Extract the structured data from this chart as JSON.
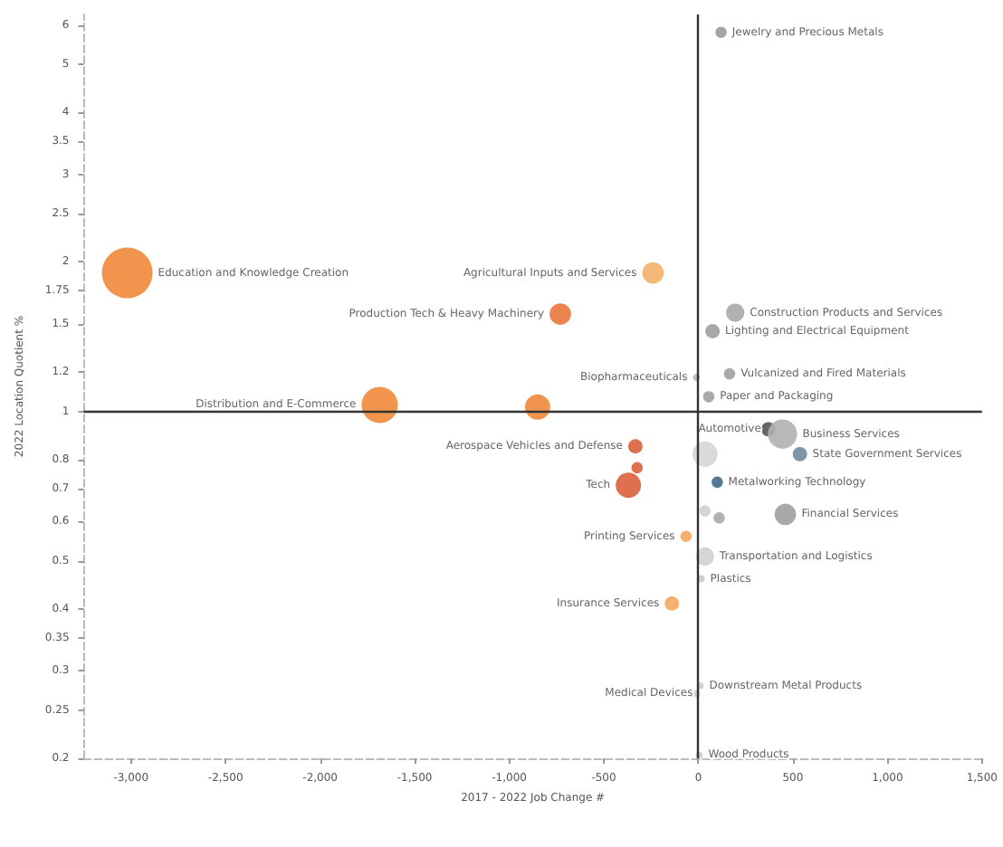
{
  "chart_data": {
    "type": "bubble",
    "xlabel": "2017 - 2022 Job Change #",
    "ylabel": "2022 Location Quotient %",
    "log": "y",
    "legend": false,
    "grid": false,
    "marker": "circle",
    "xlim": [
      -3250,
      1500
    ],
    "xticks": [
      {
        "value": -3000,
        "label": "-3,000"
      },
      {
        "value": -2500,
        "label": "-2,500"
      },
      {
        "value": -2000,
        "label": "-2,000"
      },
      {
        "value": -1500,
        "label": "-1,500"
      },
      {
        "value": -1000,
        "label": "-1,000"
      },
      {
        "value": -500,
        "label": "-500"
      },
      0,
      500,
      {
        "value": 1000,
        "label": "1,000"
      },
      {
        "value": 1500,
        "label": "1,500"
      }
    ],
    "ylim": [
      0.2,
      6.3
    ],
    "yticks": [
      0.2,
      0.25,
      0.3,
      0.35,
      0.4,
      0.5,
      0.6,
      0.7,
      0.8,
      1,
      1.2,
      1.5,
      1.75,
      2,
      2.5,
      3,
      3.5,
      4,
      5,
      6
    ],
    "ref_lines": [
      {
        "axis": "x",
        "value": 0,
        "color": "#333333"
      },
      {
        "axis": "y",
        "value": 1,
        "color": "#333333"
      }
    ],
    "series": [
      {
        "name": "Education and Knowledge Creation",
        "color": "#f0883a",
        "x": [
          -3020
        ],
        "values": [
          1.9
        ],
        "sizes": [
          1
        ]
      },
      {
        "name": "Agricultural Inputs and Services",
        "color": "#f5b06a",
        "x": [
          -240
        ],
        "values": [
          1.9
        ],
        "sizes": [
          0.18
        ]
      },
      {
        "name": "Production Tech & Heavy Machinery",
        "color": "#e8763a",
        "x": [
          -730
        ],
        "values": [
          1.57
        ],
        "sizes": [
          0.18
        ]
      },
      {
        "name": "Distribution and E-Commerce",
        "color": "#f0883a",
        "x": [
          -1685
        ],
        "values": [
          1.03
        ],
        "sizes": [
          0.51
        ]
      },
      {
        "color": "#ee8a3c",
        "x": [
          -850
        ],
        "values": [
          1.02
        ],
        "sizes": [
          0.25
        ]
      },
      {
        "name": "Jewelry and Precious Metals",
        "color": "#9a9a9a",
        "x": [
          120
        ],
        "values": [
          5.8
        ],
        "sizes": [
          0.05
        ]
      },
      {
        "name": "Construction Products and Services",
        "color": "#a8a8a8",
        "x": [
          195
        ],
        "values": [
          1.58
        ],
        "sizes": [
          0.13
        ]
      },
      {
        "name": "Lighting and Electrical Equipment",
        "color": "#a0a0a0",
        "x": [
          75
        ],
        "values": [
          1.45
        ],
        "sizes": [
          0.08
        ]
      },
      {
        "name": "Vulcanized and Fired Materials",
        "color": "#a0a0a0",
        "x": [
          165
        ],
        "values": [
          1.19
        ],
        "sizes": [
          0.05
        ]
      },
      {
        "name": "Biopharmaceuticals",
        "color": "#b8b8b8",
        "x": [
          -10
        ],
        "values": [
          1.17
        ],
        "sizes": [
          0.02
        ]
      },
      {
        "name": "Paper and Packaging",
        "color": "#a0a0a0",
        "x": [
          55
        ],
        "values": [
          1.07
        ],
        "sizes": [
          0.05
        ]
      },
      {
        "name": "Aerospace Vehicles and Defense",
        "color": "#d9603b",
        "x": [
          -333
        ],
        "values": [
          0.85
        ],
        "sizes": [
          0.08
        ]
      },
      {
        "color": "#d9603b",
        "x": [
          -324
        ],
        "values": [
          0.77
        ],
        "sizes": [
          0.05
        ]
      },
      {
        "name": "Tech",
        "color": "#d9603b",
        "x": [
          -370
        ],
        "values": [
          0.71
        ],
        "sizes": [
          0.25
        ]
      },
      {
        "name": "Printing Services",
        "color": "#f5a860",
        "x": [
          -65
        ],
        "values": [
          0.56
        ],
        "sizes": [
          0.05
        ]
      },
      {
        "name": "Insurance Services",
        "color": "#f5a860",
        "x": [
          -140
        ],
        "values": [
          0.41
        ],
        "sizes": [
          0.08
        ]
      },
      {
        "name": "Automotive",
        "color": "#555555",
        "x": [
          370
        ],
        "values": [
          0.92
        ],
        "sizes": [
          0.08
        ]
      },
      {
        "name": "Business Services",
        "color": "#b0b0b0",
        "x": [
          445
        ],
        "values": [
          0.9
        ],
        "sizes": [
          0.33
        ]
      },
      {
        "name": "State Government Services",
        "color": "#6f8aa0",
        "x": [
          537
        ],
        "values": [
          0.82
        ],
        "sizes": [
          0.08
        ]
      },
      {
        "color": "#d6d6d6",
        "x": [
          35
        ],
        "values": [
          0.82
        ],
        "sizes": [
          0.25
        ]
      },
      {
        "name": "Metalworking Technology",
        "color": "#3f6a8a",
        "x": [
          100
        ],
        "values": [
          0.72
        ],
        "sizes": [
          0.05
        ]
      },
      {
        "name": "Financial Services",
        "color": "#a0a0a0",
        "x": [
          460
        ],
        "values": [
          0.62
        ],
        "sizes": [
          0.18
        ]
      },
      {
        "color": "#d0d0d0",
        "x": [
          35
        ],
        "values": [
          0.63
        ],
        "sizes": [
          0.05
        ]
      },
      {
        "color": "#a8a8a8",
        "x": [
          110
        ],
        "values": [
          0.61
        ],
        "sizes": [
          0.05
        ]
      },
      {
        "name": "Transportation and Logistics",
        "color": "#d0d0d0",
        "x": [
          35
        ],
        "values": [
          0.51
        ],
        "sizes": [
          0.13
        ]
      },
      {
        "name": "Plastics",
        "color": "#c8c8c8",
        "x": [
          15
        ],
        "values": [
          0.46
        ],
        "sizes": [
          0.02
        ]
      },
      {
        "name": "Downstream Metal Products",
        "color": "#cccccc",
        "x": [
          10
        ],
        "values": [
          0.28
        ],
        "sizes": [
          0.02
        ]
      },
      {
        "name": "Medical Devices",
        "color": "#cccccc",
        "x": [
          -10
        ],
        "values": [
          0.27
        ],
        "sizes": [
          0.02
        ]
      },
      {
        "name": "Wood Products",
        "color": "#cccccc",
        "x": [
          5
        ],
        "values": [
          0.203
        ],
        "sizes": [
          0.02
        ]
      }
    ]
  }
}
